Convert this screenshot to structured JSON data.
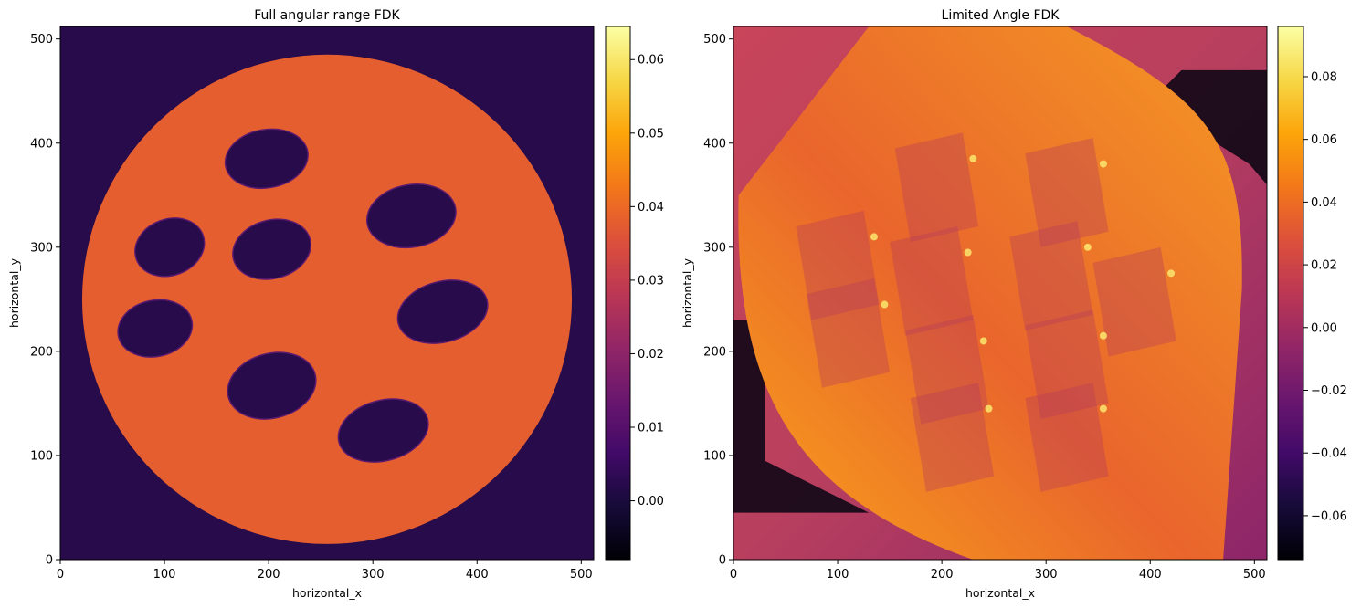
{
  "chart_data": [
    {
      "type": "heatmap",
      "title": "Full angular range FDK",
      "xlabel": "horizontal_x",
      "ylabel": "horizontal_y",
      "xlim": [
        0,
        512
      ],
      "ylim": [
        0,
        512
      ],
      "xticks": [
        0,
        100,
        200,
        300,
        400,
        500
      ],
      "yticks": [
        0,
        100,
        200,
        300,
        400,
        500
      ],
      "colormap": "inferno",
      "colorbar": {
        "range": [
          -0.008,
          0.0645
        ],
        "ticks": [
          0.0,
          0.01,
          0.02,
          0.03,
          0.04,
          0.05,
          0.06
        ],
        "tick_labels": [
          "0.00",
          "0.01",
          "0.02",
          "0.03",
          "0.04",
          "0.05",
          "0.06"
        ]
      },
      "background_value": 0.002,
      "disk": {
        "center": [
          256,
          250
        ],
        "radius": 235,
        "value": 0.038
      },
      "holes_value": 0.002,
      "holes": [
        {
          "center": [
            198,
            385
          ],
          "rx": 40,
          "ry": 28,
          "angle": 10
        },
        {
          "center": [
            337,
            330
          ],
          "rx": 43,
          "ry": 30,
          "angle": 10
        },
        {
          "center": [
            105,
            300
          ],
          "rx": 34,
          "ry": 27,
          "angle": 20
        },
        {
          "center": [
            203,
            298
          ],
          "rx": 38,
          "ry": 28,
          "angle": 15
        },
        {
          "center": [
            367,
            238
          ],
          "rx": 44,
          "ry": 29,
          "angle": 15
        },
        {
          "center": [
            91,
            222
          ],
          "rx": 36,
          "ry": 27,
          "angle": 12
        },
        {
          "center": [
            203,
            167
          ],
          "rx": 43,
          "ry": 31,
          "angle": 15
        },
        {
          "center": [
            310,
            124
          ],
          "rx": 44,
          "ry": 29,
          "angle": 15
        }
      ]
    },
    {
      "type": "heatmap",
      "title": "Limited Angle FDK",
      "xlabel": "horizontal_x",
      "ylabel": "horizontal_y",
      "xlim": [
        0,
        512
      ],
      "ylim": [
        0,
        512
      ],
      "xticks": [
        0,
        100,
        200,
        300,
        400,
        500
      ],
      "yticks": [
        0,
        100,
        200,
        300,
        400,
        500
      ],
      "colormap": "inferno",
      "colorbar": {
        "range": [
          -0.074,
          0.096
        ],
        "ticks": [
          -0.06,
          -0.04,
          -0.02,
          0.0,
          0.02,
          0.04,
          0.06,
          0.08
        ],
        "tick_labels": [
          "−0.06",
          "−0.04",
          "−0.02",
          "0.00",
          "0.02",
          "0.04",
          "0.06",
          "0.08"
        ]
      },
      "background_value": 0.01,
      "object_value": 0.05,
      "dark_edge_value": -0.07
    }
  ]
}
